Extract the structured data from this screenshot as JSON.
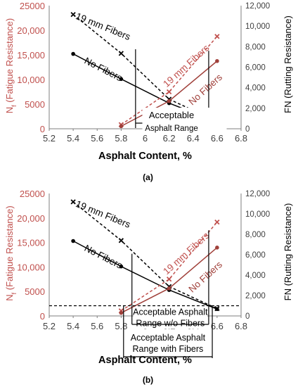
{
  "chart_data": [
    {
      "type": "line",
      "panel_label": "(a)",
      "xlabel": "Asphalt Content, %",
      "ylabel_left": "Nf (Fatigue Resistance)",
      "ylabel_left_main": "N",
      "ylabel_left_sub": "f",
      "ylabel_left_rest": " (Fatigue Resistance)",
      "ylabel_right": "FN (Rutting Resistance)",
      "xlim": [
        5.2,
        6.8
      ],
      "ylim_left": [
        0,
        25000
      ],
      "ylim_right": [
        0,
        12000
      ],
      "x_ticks": [
        "5.2",
        "5.4",
        "5.6",
        "5.8",
        "6",
        "6.2",
        "6.4",
        "6.6",
        "6.8"
      ],
      "y_left_ticks": [
        "0",
        "5000",
        "10,000",
        "15,000",
        "20,000",
        "25000"
      ],
      "y_right_ticks": [
        "0",
        "2,000",
        "4,000",
        "6,000",
        "8,000",
        "10,000",
        "12,000"
      ],
      "series": [
        {
          "name": "19 mm Fibers",
          "axis": "left",
          "style": "dashed",
          "color": "#000000",
          "x": [
            5.4,
            5.8,
            6.2,
            6.6
          ],
          "y": [
            23200,
            15300,
            6000,
            1500
          ]
        },
        {
          "name": "No Fibers",
          "axis": "left",
          "style": "solid",
          "color": "#000000",
          "x": [
            5.4,
            5.8,
            6.2,
            6.6
          ],
          "y": [
            15200,
            10100,
            5200,
            1400
          ]
        },
        {
          "name": "19 mm Fibers",
          "axis": "right",
          "style": "dashed",
          "color": "#c0504d",
          "x": [
            5.8,
            6.2,
            6.6
          ],
          "y": [
            400,
            3600,
            9000
          ]
        },
        {
          "name": "No Fibers",
          "axis": "right",
          "style": "solid",
          "color": "#a0403a",
          "x": [
            5.8,
            6.2,
            6.6
          ],
          "y": [
            250,
            2700,
            6600
          ]
        }
      ],
      "annotations": [
        {
          "text": "Acceptable",
          "key": "a1"
        },
        {
          "text": "Asphalt Range",
          "key": "a2"
        }
      ]
    },
    {
      "type": "line",
      "panel_label": "(b)",
      "xlabel": "Asphalt Content, %",
      "ylabel_left": "Nf (Fatigue Resistance)",
      "ylabel_left_main": "N",
      "ylabel_left_sub": "f",
      "ylabel_left_rest": " (Fatigue Resistance)",
      "ylabel_right": "FN (Rutting Resistance)",
      "xlim": [
        5.2,
        6.8
      ],
      "ylim_left": [
        0,
        25000
      ],
      "ylim_right": [
        0,
        12000
      ],
      "x_ticks": [
        "5.2",
        "5.4",
        "5.6",
        "5.8",
        "6",
        "6.2",
        "6.4",
        "6.6",
        "6.8"
      ],
      "y_left_ticks": [
        "0",
        "5000",
        "10,000",
        "15,000",
        "20,000",
        "25000"
      ],
      "y_right_ticks": [
        "0",
        "2,000",
        "4,000",
        "6,000",
        "8,000",
        "10,000",
        "12,000"
      ],
      "series": [
        {
          "name": "19 mm Fibers",
          "axis": "left",
          "style": "dashed",
          "color": "#000000",
          "x": [
            5.4,
            5.8,
            6.2,
            6.6
          ],
          "y": [
            23300,
            15400,
            6000,
            1500
          ]
        },
        {
          "name": "No Fibers",
          "axis": "left",
          "style": "solid",
          "color": "#000000",
          "x": [
            5.4,
            5.8,
            6.2,
            6.6
          ],
          "y": [
            15300,
            10100,
            5300,
            1400
          ]
        },
        {
          "name": "19 mm Fibers",
          "axis": "right",
          "style": "dashed",
          "color": "#c0504d",
          "x": [
            5.8,
            6.2,
            6.6
          ],
          "y": [
            500,
            3600,
            9200
          ]
        },
        {
          "name": "No Fibers",
          "axis": "right",
          "style": "solid",
          "color": "#a0403a",
          "x": [
            5.8,
            6.2,
            6.6
          ],
          "y": [
            300,
            2700,
            6700
          ]
        }
      ],
      "annotations": [
        {
          "text": "Acceptable Asphalt",
          "key": "b1"
        },
        {
          "text": "Range w/o Fibers",
          "key": "b2"
        },
        {
          "text": "Acceptable Asphalt",
          "key": "b3"
        },
        {
          "text": "Range with Fibers",
          "key": "b4"
        }
      ]
    }
  ],
  "colors": {
    "black": "#000000",
    "red_dashed": "#c0504d",
    "red_solid": "#a0403a",
    "left_axis_label": "#c0504d",
    "axis_grey": "#808080"
  }
}
